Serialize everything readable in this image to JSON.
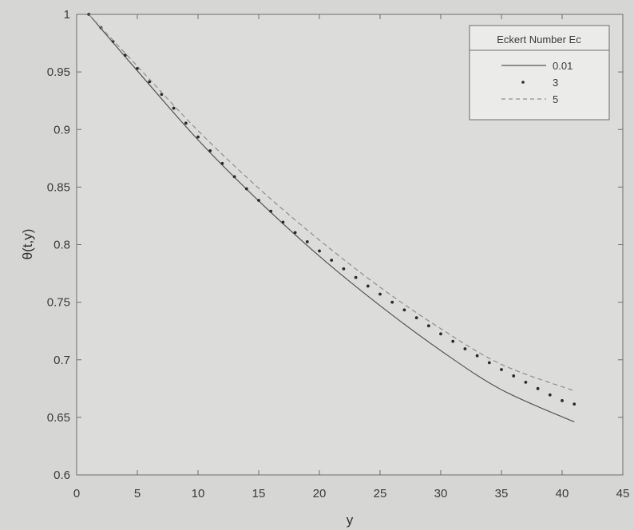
{
  "chart_data": {
    "type": "line",
    "title": "",
    "xlabel": "y",
    "ylabel": "θ(t,y)",
    "xlim": [
      0,
      45
    ],
    "ylim": [
      0.6,
      1
    ],
    "xticks": [
      0,
      5,
      10,
      15,
      20,
      25,
      30,
      35,
      40,
      45
    ],
    "yticks": [
      0.6,
      0.65,
      0.7,
      0.75,
      0.8,
      0.85,
      0.9,
      0.95,
      1
    ],
    "xtick_labels": [
      "0",
      "5",
      "10",
      "15",
      "20",
      "25",
      "30",
      "35",
      "40",
      "45"
    ],
    "ytick_labels": [
      "0.6",
      "0.65",
      "0.7",
      "0.75",
      "0.8",
      "0.85",
      "0.9",
      "0.95",
      "1"
    ],
    "grid": false,
    "legend": {
      "title": "Eckert Number Ec",
      "position": "top-right"
    },
    "series": [
      {
        "name": "0.01",
        "style": "solid",
        "color": "#555555",
        "x": [
          1,
          5,
          10,
          15,
          20,
          25,
          30,
          35,
          41
        ],
        "y": [
          1.0,
          0.951,
          0.891,
          0.838,
          0.79,
          0.747,
          0.708,
          0.674,
          0.646
        ]
      },
      {
        "name": "3",
        "style": "dotted",
        "color": "#2a2a2a",
        "x": [
          1,
          2,
          3,
          4,
          5,
          6,
          7,
          8,
          9,
          10,
          11,
          12,
          13,
          14,
          15,
          16,
          17,
          18,
          19,
          20,
          21,
          22,
          23,
          24,
          25,
          26,
          27,
          28,
          29,
          30,
          31,
          32,
          33,
          34,
          35,
          36,
          37,
          38,
          39,
          40,
          41
        ],
        "y": [
          1.0,
          0.9885,
          0.9765,
          0.9645,
          0.953,
          0.9415,
          0.9305,
          0.9185,
          0.9055,
          0.8935,
          0.8815,
          0.8705,
          0.859,
          0.8485,
          0.8385,
          0.829,
          0.8195,
          0.8105,
          0.8025,
          0.7945,
          0.7865,
          0.779,
          0.7715,
          0.764,
          0.757,
          0.75,
          0.7433,
          0.7365,
          0.7295,
          0.7225,
          0.716,
          0.7095,
          0.7035,
          0.6975,
          0.6915,
          0.686,
          0.6805,
          0.675,
          0.6695,
          0.6645,
          0.6615
        ]
      },
      {
        "name": "5",
        "style": "dashed",
        "color": "#8e8e8e",
        "x": [
          1,
          5,
          10,
          15,
          20,
          25,
          30,
          35,
          41
        ],
        "y": [
          1.0,
          0.955,
          0.899,
          0.849,
          0.804,
          0.763,
          0.727,
          0.696,
          0.673
        ]
      }
    ]
  }
}
